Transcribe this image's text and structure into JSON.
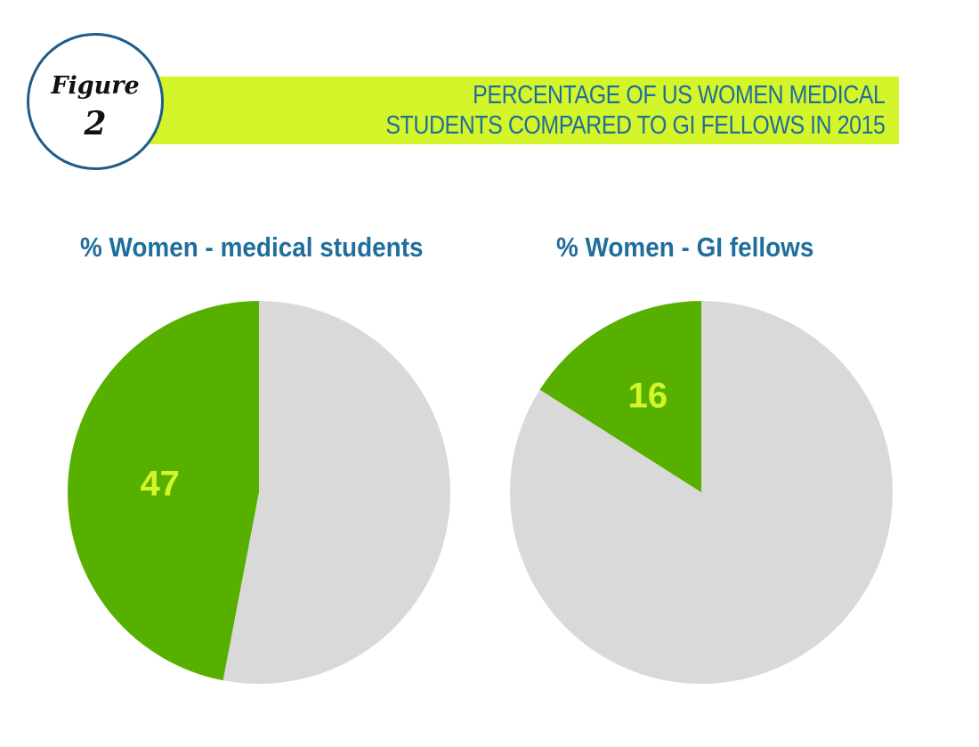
{
  "figure": {
    "word": "Figure",
    "number": "2"
  },
  "title_lines": [
    "PERCENTAGE OF US WOMEN MEDICAL",
    "STUDENTS COMPARED TO GI FELLOWS IN 2015"
  ],
  "colors": {
    "title_band": "#d4f52a",
    "title_text": "#1f6e9c",
    "women_slice": "#57b000",
    "other_slice": "#d9d9d9",
    "slice_label": "#d4f52a",
    "badge_border": "#1f5c8a"
  },
  "chart_data": [
    {
      "type": "pie",
      "title": "% Women - medical students",
      "slices": [
        {
          "value": 47,
          "label": "47",
          "color": "#57b000"
        },
        {
          "value": 53,
          "label": "",
          "color": "#d9d9d9"
        }
      ]
    },
    {
      "type": "pie",
      "title": "% Women - GI fellows",
      "slices": [
        {
          "value": 16,
          "label": "16",
          "color": "#57b000"
        },
        {
          "value": 84,
          "label": "",
          "color": "#d9d9d9"
        }
      ]
    }
  ]
}
